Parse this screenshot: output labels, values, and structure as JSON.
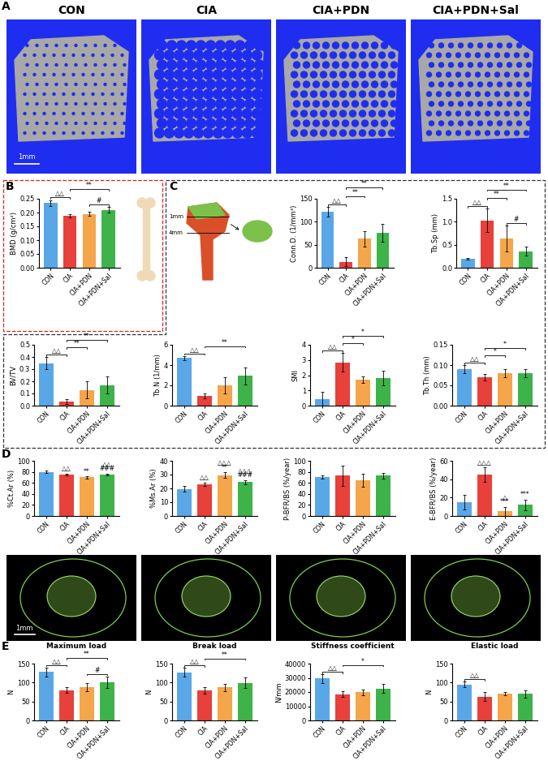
{
  "figure": {
    "panel_letters": [
      "A",
      "B",
      "C",
      "D",
      "E"
    ],
    "image_titles": [
      "CON",
      "CIA",
      "CIA+PDN",
      "CIA+PDN+Sal"
    ],
    "scale_bar": "1mm",
    "femur_marks": [
      "1mm",
      "4mm"
    ],
    "section_scale_bar": "1mm"
  },
  "chart_data": [
    {
      "type": "bar",
      "y_label": "BMD (g/cm²)",
      "categories": [
        "CON",
        "CIA",
        "CIA+PDN",
        "CIA+PDN+Sal"
      ],
      "colors": [
        "#5aa7e8",
        "#e8403a",
        "#f5a54a",
        "#3db34a"
      ],
      "values": [
        0.235,
        0.188,
        0.195,
        0.21
      ],
      "errors": [
        0.01,
        0.007,
        0.007,
        0.01
      ],
      "ylim": [
        0,
        0.25
      ],
      "yticks": [
        {
          "value": 0,
          "label": "0.00"
        },
        {
          "value": 0.05,
          "label": "0.05"
        },
        {
          "value": 0.1,
          "label": "0.10"
        },
        {
          "value": 0.15,
          "label": "0.15"
        },
        {
          "value": 0.2,
          "label": "0.20"
        },
        {
          "value": 0.25,
          "label": "0.25"
        }
      ],
      "brackets": [
        {
          "text": "△△",
          "between": [
            "CON",
            "CIA"
          ]
        },
        {
          "text": "#",
          "between": [
            "CIA+PDN",
            "CIA+PDN+Sal"
          ]
        },
        {
          "text": "**",
          "between": [
            "CIA",
            "CIA+PDN+Sal"
          ]
        }
      ]
    },
    {
      "type": "bar",
      "y_label": "Conn.D. (1/mm³)",
      "categories": [
        "CON",
        "CIA",
        "CIA+PDN",
        "CIA+PDN+Sal"
      ],
      "colors": [
        "#5aa7e8",
        "#e8403a",
        "#f5a54a",
        "#3db34a"
      ],
      "values": [
        122,
        13,
        63,
        76
      ],
      "errors": [
        10,
        10,
        17,
        20
      ],
      "ylim": [
        0,
        150
      ],
      "yticks": [
        0,
        50,
        100,
        150
      ],
      "brackets": [
        {
          "text": "△△",
          "between": [
            "CON",
            "CIA"
          ]
        },
        {
          "text": "**",
          "between": [
            "CIA",
            "CIA+PDN"
          ]
        },
        {
          "text": "**",
          "between": [
            "CIA",
            "CIA+PDN+Sal"
          ]
        }
      ]
    },
    {
      "type": "bar",
      "y_label": "Tb.Sp (mm)",
      "categories": [
        "CON",
        "CIA",
        "CIA+PDN",
        "CIA+PDN+Sal"
      ],
      "colors": [
        "#5aa7e8",
        "#e8403a",
        "#f5a54a",
        "#3db34a"
      ],
      "values": [
        0.2,
        1.03,
        0.63,
        0.36
      ],
      "errors": [
        0.02,
        0.25,
        0.28,
        0.1
      ],
      "ylim": [
        0,
        1.5
      ],
      "yticks": [
        0.0,
        0.5,
        1.0,
        1.5
      ],
      "brackets": [
        {
          "text": "△△",
          "between": [
            "CON",
            "CIA"
          ]
        },
        {
          "text": "#",
          "between": [
            "CIA+PDN",
            "CIA+PDN+Sal"
          ]
        },
        {
          "text": "**",
          "between": [
            "CIA",
            "CIA+PDN"
          ]
        },
        {
          "text": "**",
          "between": [
            "CIA",
            "CIA+PDN+Sal"
          ]
        }
      ]
    },
    {
      "type": "bar",
      "y_label": "BV/TV",
      "categories": [
        "CON",
        "CIA",
        "CIA+PDN",
        "CIA+PDN+Sal"
      ],
      "colors": [
        "#5aa7e8",
        "#e8403a",
        "#f5a54a",
        "#3db34a"
      ],
      "values": [
        0.35,
        0.035,
        0.13,
        0.17
      ],
      "errors": [
        0.05,
        0.02,
        0.07,
        0.07
      ],
      "ylim": [
        0,
        0.5
      ],
      "yticks": [
        0.0,
        0.1,
        0.2,
        0.3,
        0.4,
        0.5
      ],
      "brackets": [
        {
          "text": "△△",
          "between": [
            "CON",
            "CIA"
          ]
        },
        {
          "text": "**",
          "between": [
            "CIA",
            "CIA+PDN"
          ]
        },
        {
          "text": "**",
          "between": [
            "CIA",
            "CIA+PDN+Sal"
          ]
        }
      ]
    },
    {
      "type": "bar",
      "y_label": "Tb.N (1/mm)",
      "categories": [
        "CON",
        "CIA",
        "CIA+PDN",
        "CIA+PDN+Sal"
      ],
      "colors": [
        "#5aa7e8",
        "#e8403a",
        "#f5a54a",
        "#3db34a"
      ],
      "values": [
        4.7,
        0.95,
        2.0,
        2.95
      ],
      "errors": [
        0.2,
        0.25,
        0.8,
        0.85
      ],
      "ylim": [
        0,
        6
      ],
      "yticks": [
        0,
        2,
        4,
        6
      ],
      "brackets": [
        {
          "text": "△△",
          "between": [
            "CON",
            "CIA"
          ]
        },
        {
          "text": "**",
          "between": [
            "CIA",
            "CIA+PDN+Sal"
          ]
        }
      ]
    },
    {
      "type": "bar",
      "y_label": "SMI",
      "categories": [
        "CON",
        "CIA",
        "CIA+PDN",
        "CIA+PDN+Sal"
      ],
      "colors": [
        "#5aa7e8",
        "#e8403a",
        "#f5a54a",
        "#3db34a"
      ],
      "values": [
        0.45,
        2.85,
        1.72,
        1.82
      ],
      "errors": [
        0.45,
        0.6,
        0.2,
        0.5
      ],
      "ylim": [
        0,
        4
      ],
      "yticks": [
        0,
        1,
        2,
        3,
        4
      ],
      "brackets": [
        {
          "text": "△△",
          "between": [
            "CON",
            "CIA"
          ]
        },
        {
          "text": "*",
          "between": [
            "CIA",
            "CIA+PDN"
          ]
        },
        {
          "text": "*",
          "between": [
            "CIA",
            "CIA+PDN+Sal"
          ]
        }
      ]
    },
    {
      "type": "bar",
      "y_label": "Tb.Th (mm)",
      "categories": [
        "CON",
        "CIA",
        "CIA+PDN",
        "CIA+PDN+Sal"
      ],
      "colors": [
        "#5aa7e8",
        "#e8403a",
        "#f5a54a",
        "#3db34a"
      ],
      "values": [
        0.09,
        0.07,
        0.08,
        0.08
      ],
      "errors": [
        0.01,
        0.008,
        0.01,
        0.01
      ],
      "ylim": [
        0,
        0.15
      ],
      "yticks": [
        {
          "value": 0,
          "label": "0.00"
        },
        {
          "value": 0.05,
          "label": "0.05"
        },
        {
          "value": 0.1,
          "label": "0.10"
        },
        {
          "value": 0.15,
          "label": "0.15"
        }
      ],
      "brackets": [
        {
          "text": "△△",
          "between": [
            "CON",
            "CIA"
          ]
        },
        {
          "text": "*",
          "between": [
            "CIA",
            "CIA+PDN"
          ]
        },
        {
          "text": "*",
          "between": [
            "CIA",
            "CIA+PDN+Sal"
          ]
        }
      ]
    },
    {
      "type": "bar",
      "y_label": "%Ct.Ar (%)",
      "categories": [
        "CON",
        "CIA",
        "CIA+PDN",
        "CIA+PDN+Sal"
      ],
      "colors": [
        "#5aa7e8",
        "#e8403a",
        "#f5a54a",
        "#3db34a"
      ],
      "values": [
        80,
        75,
        70,
        75
      ],
      "errors": [
        2,
        2,
        2,
        2
      ],
      "ylim": [
        0,
        100
      ],
      "yticks": [
        0,
        20,
        40,
        60,
        80,
        100
      ],
      "marks": [
        {
          "text": "△△",
          "on": "CIA"
        },
        {
          "text": "**",
          "on": "CIA+PDN"
        },
        {
          "text": "###",
          "on": "CIA+PDN+Sal"
        },
        {
          "text": "△△",
          "on": "CIA+PDN+Sal"
        }
      ]
    },
    {
      "type": "bar",
      "y_label": "%Ms.Ar (%)",
      "categories": [
        "CON",
        "CIA",
        "CIA+PDN",
        "CIA+PDN+Sal"
      ],
      "colors": [
        "#5aa7e8",
        "#e8403a",
        "#f5a54a",
        "#3db34a"
      ],
      "values": [
        19.5,
        23,
        29.5,
        24.5
      ],
      "errors": [
        2,
        1.2,
        2,
        1.5
      ],
      "ylim": [
        0,
        40
      ],
      "yticks": [
        0,
        10,
        20,
        30,
        40
      ],
      "marks": [
        {
          "text": "△△",
          "on": "CIA"
        },
        {
          "text": "**",
          "on": "CIA+PDN"
        },
        {
          "text": "△△△",
          "on": "CIA+PDN"
        },
        {
          "text": "###",
          "on": "CIA+PDN+Sal"
        },
        {
          "text": "△△△",
          "on": "CIA+PDN+Sal"
        }
      ]
    },
    {
      "type": "bar",
      "y_label": "P-BFR/BS (%/year)",
      "categories": [
        "CON",
        "CIA",
        "CIA+PDN",
        "CIA+PDN+Sal"
      ],
      "colors": [
        "#5aa7e8",
        "#e8403a",
        "#f5a54a",
        "#3db34a"
      ],
      "values": [
        70,
        73,
        65,
        73
      ],
      "errors": [
        3,
        18,
        12,
        5
      ],
      "ylim": [
        0,
        100
      ],
      "yticks": [
        0,
        20,
        40,
        60,
        80,
        100
      ]
    },
    {
      "type": "bar",
      "y_label": "E-BFR/BS (%/year)",
      "categories": [
        "CON",
        "CIA",
        "CIA+PDN",
        "CIA+PDN+Sal"
      ],
      "colors": [
        "#5aa7e8",
        "#e8403a",
        "#f5a54a",
        "#3db34a"
      ],
      "values": [
        15,
        45,
        5,
        12
      ],
      "errors": [
        8,
        8,
        5,
        6
      ],
      "ylim": [
        0,
        60
      ],
      "yticks": [
        0,
        20,
        40,
        60
      ],
      "marks": [
        {
          "text": "△△△",
          "on": "CIA"
        },
        {
          "text": "***",
          "on": "CIA+PDN"
        },
        {
          "text": "△",
          "on": "CIA+PDN"
        },
        {
          "text": "***",
          "on": "CIA+PDN+Sal"
        }
      ]
    },
    {
      "type": "bar",
      "title": "Maximum load",
      "y_label": "N",
      "categories": [
        "CON",
        "CIA",
        "CIA+PDN",
        "CIA+PDN+Sal"
      ],
      "colors": [
        "#5aa7e8",
        "#e8403a",
        "#f5a54a",
        "#3db34a"
      ],
      "values": [
        128,
        80,
        88,
        101
      ],
      "errors": [
        12,
        8,
        10,
        15
      ],
      "ylim": [
        0,
        150
      ],
      "yticks": [
        0,
        50,
        100,
        150
      ],
      "brackets": [
        {
          "text": "△△",
          "between": [
            "CON",
            "CIA"
          ]
        },
        {
          "text": "#",
          "between": [
            "CIA+PDN",
            "CIA+PDN+Sal"
          ]
        },
        {
          "text": "**",
          "between": [
            "CIA",
            "CIA+PDN+Sal"
          ]
        }
      ]
    },
    {
      "type": "bar",
      "title": "Break load",
      "y_label": "N",
      "categories": [
        "CON",
        "CIA",
        "CIA+PDN",
        "CIA+PDN+Sal"
      ],
      "colors": [
        "#5aa7e8",
        "#e8403a",
        "#f5a54a",
        "#3db34a"
      ],
      "values": [
        127,
        79,
        87,
        99
      ],
      "errors": [
        12,
        9,
        10,
        14
      ],
      "ylim": [
        0,
        150
      ],
      "yticks": [
        0,
        50,
        100,
        150
      ],
      "brackets": [
        {
          "text": "△△",
          "between": [
            "CON",
            "CIA"
          ]
        },
        {
          "text": "**",
          "between": [
            "CIA",
            "CIA+PDN+Sal"
          ]
        }
      ]
    },
    {
      "type": "bar",
      "title": "Stiffness coefficient",
      "y_label": "N/mm",
      "categories": [
        "CON",
        "CIA",
        "CIA+PDN",
        "CIA+PDN+Sal"
      ],
      "colors": [
        "#5aa7e8",
        "#e8403a",
        "#f5a54a",
        "#3db34a"
      ],
      "values": [
        29500,
        18500,
        20000,
        22500
      ],
      "errors": [
        3000,
        2000,
        2000,
        3000
      ],
      "ylim": [
        0,
        40000
      ],
      "yticks": [
        0,
        10000,
        20000,
        30000,
        40000
      ],
      "brackets": [
        {
          "text": "△△",
          "between": [
            "CON",
            "CIA"
          ]
        },
        {
          "text": "*",
          "between": [
            "CIA",
            "CIA+PDN+Sal"
          ]
        }
      ]
    },
    {
      "type": "bar",
      "title": "Elastic load",
      "y_label": "N",
      "categories": [
        "CON",
        "CIA",
        "CIA+PDN",
        "CIA+PDN+Sal"
      ],
      "colors": [
        "#5aa7e8",
        "#e8403a",
        "#f5a54a",
        "#3db34a"
      ],
      "values": [
        95,
        63,
        71,
        70
      ],
      "errors": [
        8,
        12,
        5,
        10
      ],
      "ylim": [
        0,
        150
      ],
      "yticks": [
        0,
        50,
        100,
        150
      ],
      "brackets": [
        {
          "text": "△△",
          "between": [
            "CON",
            "CIA"
          ]
        }
      ]
    }
  ]
}
